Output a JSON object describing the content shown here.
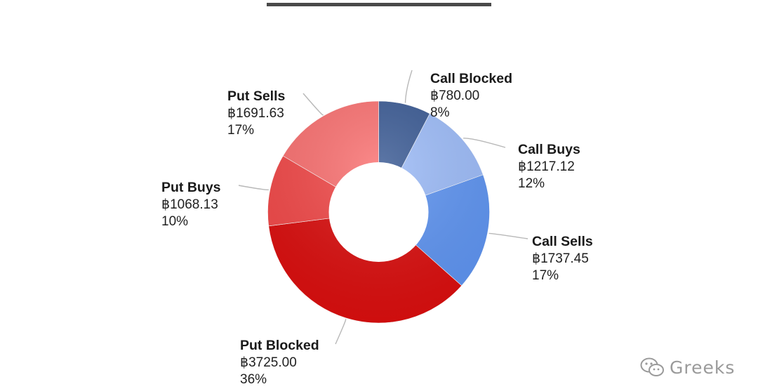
{
  "header": {
    "logo_text": "",
    "title": ""
  },
  "watermark": {
    "text": "Greeks",
    "icon": "wechat-icon"
  },
  "chart_data": {
    "type": "pie",
    "style": "donut",
    "currency_symbol": "฿",
    "slices": [
      {
        "name": "Call Blocked",
        "value": "฿780.00",
        "amount": 780.0,
        "percent": "8%",
        "color": "#3a5a94"
      },
      {
        "name": "Call Buys",
        "value": "฿1217.12",
        "amount": 1217.12,
        "percent": "12%",
        "color": "#9dbcf9"
      },
      {
        "name": "Call Sells",
        "value": "฿1737.45",
        "amount": 1737.45,
        "percent": "17%",
        "color": "#5f95f2"
      },
      {
        "name": "Put Blocked",
        "value": "฿3725.00",
        "amount": 3725.0,
        "percent": "36%",
        "color": "#db0f0f"
      },
      {
        "name": "Put Buys",
        "value": "฿1068.13",
        "amount": 1068.13,
        "percent": "10%",
        "color": "#f24949"
      },
      {
        "name": "Put Sells",
        "value": "฿1691.63",
        "amount": 1691.63,
        "percent": "17%",
        "color": "#fa7070"
      }
    ]
  }
}
